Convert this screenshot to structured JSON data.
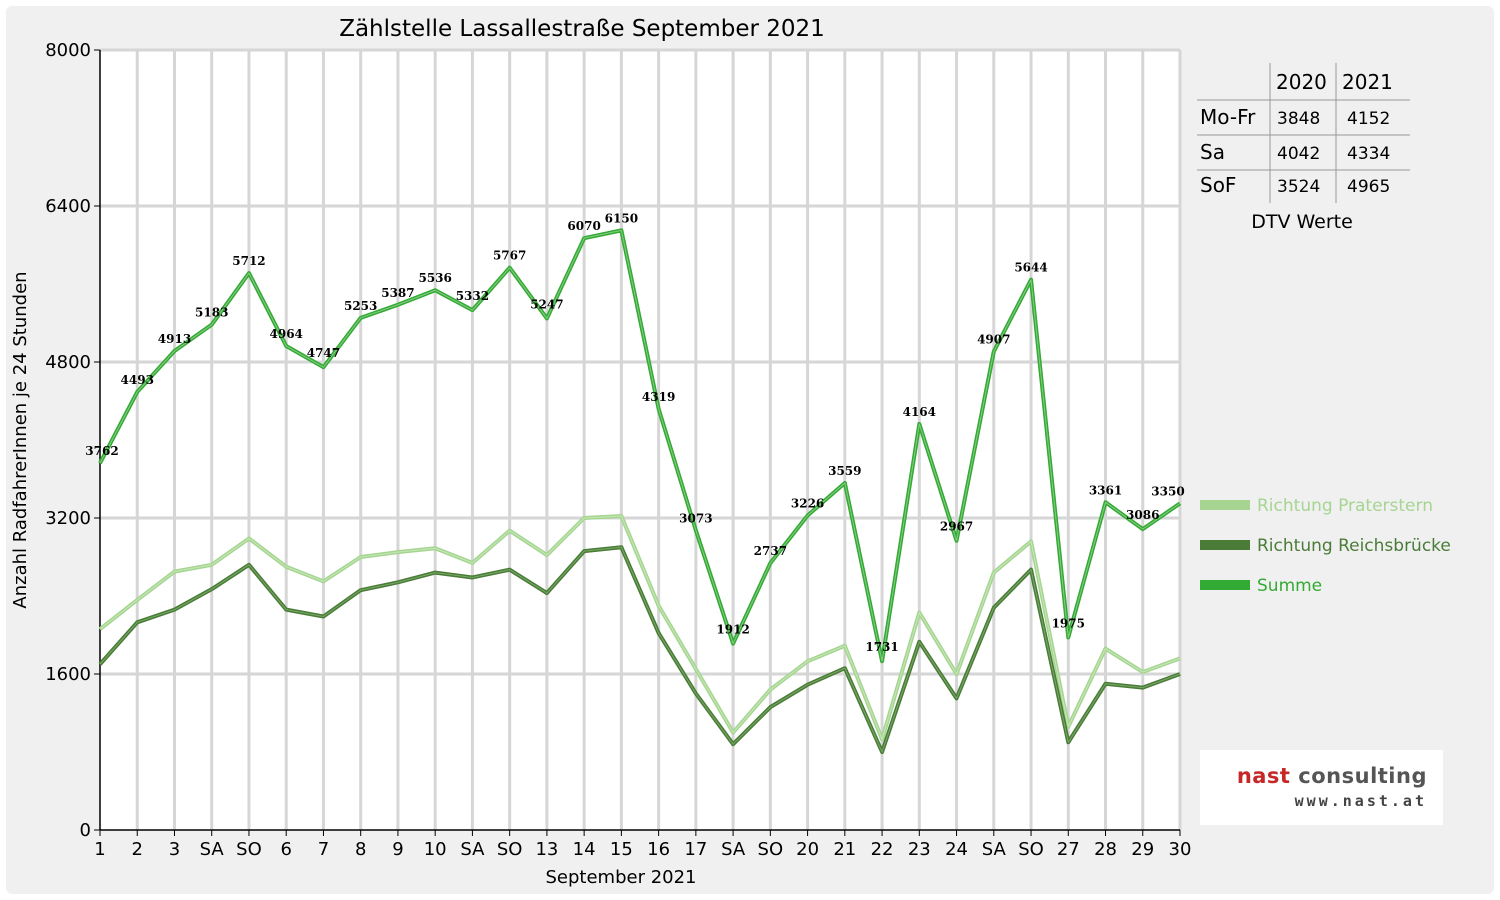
{
  "chart_data": {
    "type": "line",
    "title": "Zählstelle Lassallestraße September 2021",
    "xlabel": "September 2021",
    "ylabel": "Anzahl RadfahrerInnen je 24 Stunden",
    "ylim": [
      0,
      8000
    ],
    "yticks": [
      "0",
      "1600",
      "3200",
      "4800",
      "6400",
      "8000"
    ],
    "grid": true,
    "legend_position": "right",
    "categories": [
      "1",
      "2",
      "3",
      "SA",
      "SO",
      "6",
      "7",
      "8",
      "9",
      "10",
      "SA",
      "SO",
      "13",
      "14",
      "15",
      "16",
      "17",
      "SA",
      "SO",
      "20",
      "21",
      "22",
      "23",
      "24",
      "SA",
      "SO",
      "27",
      "28",
      "29",
      "30"
    ],
    "weekend_color": "#dd0000",
    "series": [
      {
        "name": "Richtung Praterstern",
        "color": "#a6d592",
        "values": [
          2060,
          2360,
          2650,
          2720,
          2990,
          2700,
          2550,
          2800,
          2850,
          2890,
          2740,
          3070,
          2820,
          3200,
          3220,
          2300,
          1650,
          1000,
          1440,
          1730,
          1890,
          930,
          2230,
          1600,
          2640,
          2960,
          1060,
          1860,
          1620,
          1760
        ]
      },
      {
        "name": "Richtung Reichsbrücke",
        "color": "#4a7c38",
        "values": [
          1700,
          2130,
          2260,
          2470,
          2720,
          2260,
          2190,
          2460,
          2540,
          2640,
          2590,
          2670,
          2430,
          2860,
          2900,
          2020,
          1400,
          880,
          1260,
          1490,
          1660,
          800,
          1930,
          1350,
          2280,
          2670,
          900,
          1500,
          1460,
          1600
        ]
      },
      {
        "name": "Summe",
        "color": "#33aa33",
        "labels_shown": true,
        "values": [
          3762,
          4493,
          4913,
          5183,
          5712,
          4964,
          4747,
          5253,
          5387,
          5536,
          5332,
          5767,
          5247,
          6070,
          6150,
          4319,
          3073,
          1912,
          2737,
          3226,
          3559,
          1731,
          4164,
          2967,
          4907,
          5644,
          1975,
          3361,
          3086,
          3350
        ]
      }
    ]
  },
  "dtv_table": {
    "headers": [
      "2020",
      "2021"
    ],
    "rows": [
      {
        "label": "Mo-Fr",
        "v2020": "3848",
        "v2021": "4152"
      },
      {
        "label": "Sa",
        "v2020": "4042",
        "v2021": "4334"
      },
      {
        "label": "SoF",
        "v2020": "3524",
        "v2021": "4965"
      }
    ],
    "caption": "DTV Werte"
  },
  "logo": {
    "name_part1": "nast",
    "name_part2": "consulting",
    "url": "www.nast.at"
  }
}
